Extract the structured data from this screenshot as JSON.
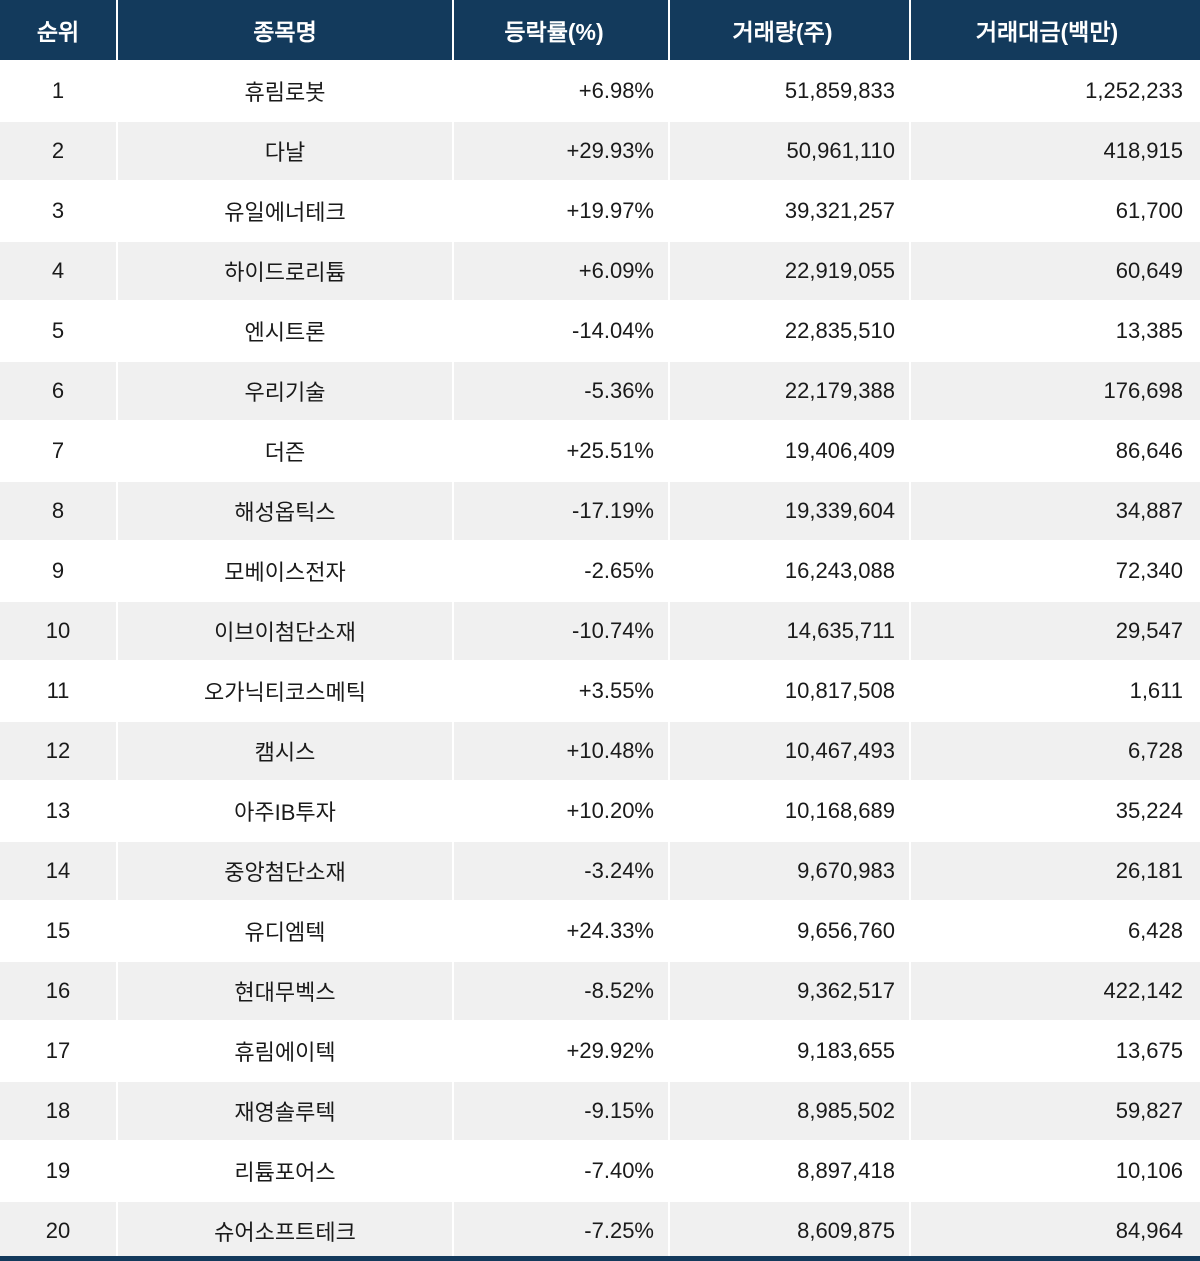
{
  "colors": {
    "header_bg": "#133a5c",
    "header_text": "#ffffff",
    "row_alt_bg": "#f0f0f0",
    "row_bg": "#ffffff",
    "cell_text": "#1a1a1a"
  },
  "table": {
    "columns": [
      {
        "label": "순위"
      },
      {
        "label": "종목명"
      },
      {
        "label": "등락률(%)"
      },
      {
        "label": "거래량(주)"
      },
      {
        "label": "거래대금(백만)"
      }
    ],
    "rows": [
      {
        "rank": "1",
        "name": "휴림로봇",
        "change": "+6.98%",
        "volume": "51,859,833",
        "value": "1,252,233"
      },
      {
        "rank": "2",
        "name": "다날",
        "change": "+29.93%",
        "volume": "50,961,110",
        "value": "418,915"
      },
      {
        "rank": "3",
        "name": "유일에너테크",
        "change": "+19.97%",
        "volume": "39,321,257",
        "value": "61,700"
      },
      {
        "rank": "4",
        "name": "하이드로리튬",
        "change": "+6.09%",
        "volume": "22,919,055",
        "value": "60,649"
      },
      {
        "rank": "5",
        "name": "엔시트론",
        "change": "-14.04%",
        "volume": "22,835,510",
        "value": "13,385"
      },
      {
        "rank": "6",
        "name": "우리기술",
        "change": "-5.36%",
        "volume": "22,179,388",
        "value": "176,698"
      },
      {
        "rank": "7",
        "name": "더즌",
        "change": "+25.51%",
        "volume": "19,406,409",
        "value": "86,646"
      },
      {
        "rank": "8",
        "name": "해성옵틱스",
        "change": "-17.19%",
        "volume": "19,339,604",
        "value": "34,887"
      },
      {
        "rank": "9",
        "name": "모베이스전자",
        "change": "-2.65%",
        "volume": "16,243,088",
        "value": "72,340"
      },
      {
        "rank": "10",
        "name": "이브이첨단소재",
        "change": "-10.74%",
        "volume": "14,635,711",
        "value": "29,547"
      },
      {
        "rank": "11",
        "name": "오가닉티코스메틱",
        "change": "+3.55%",
        "volume": "10,817,508",
        "value": "1,611"
      },
      {
        "rank": "12",
        "name": "캠시스",
        "change": "+10.48%",
        "volume": "10,467,493",
        "value": "6,728"
      },
      {
        "rank": "13",
        "name": "아주IB투자",
        "change": "+10.20%",
        "volume": "10,168,689",
        "value": "35,224"
      },
      {
        "rank": "14",
        "name": "중앙첨단소재",
        "change": "-3.24%",
        "volume": "9,670,983",
        "value": "26,181"
      },
      {
        "rank": "15",
        "name": "유디엠텍",
        "change": "+24.33%",
        "volume": "9,656,760",
        "value": "6,428"
      },
      {
        "rank": "16",
        "name": "현대무벡스",
        "change": "-8.52%",
        "volume": "9,362,517",
        "value": "422,142"
      },
      {
        "rank": "17",
        "name": "휴림에이텍",
        "change": "+29.92%",
        "volume": "9,183,655",
        "value": "13,675"
      },
      {
        "rank": "18",
        "name": "재영솔루텍",
        "change": "-9.15%",
        "volume": "8,985,502",
        "value": "59,827"
      },
      {
        "rank": "19",
        "name": "리튬포어스",
        "change": "-7.40%",
        "volume": "8,897,418",
        "value": "10,106"
      },
      {
        "rank": "20",
        "name": "슈어소프트테크",
        "change": "-7.25%",
        "volume": "8,609,875",
        "value": "84,964"
      }
    ]
  },
  "chart_data": {
    "type": "table",
    "columns": [
      "순위",
      "종목명",
      "등락률(%)",
      "거래량(주)",
      "거래대금(백만)"
    ],
    "rows": [
      [
        1,
        "휴림로봇",
        6.98,
        51859833,
        1252233
      ],
      [
        2,
        "다날",
        29.93,
        50961110,
        418915
      ],
      [
        3,
        "유일에너테크",
        19.97,
        39321257,
        61700
      ],
      [
        4,
        "하이드로리튬",
        6.09,
        22919055,
        60649
      ],
      [
        5,
        "엔시트론",
        -14.04,
        22835510,
        13385
      ],
      [
        6,
        "우리기술",
        -5.36,
        22179388,
        176698
      ],
      [
        7,
        "더즌",
        25.51,
        19406409,
        86646
      ],
      [
        8,
        "해성옵틱스",
        -17.19,
        19339604,
        34887
      ],
      [
        9,
        "모베이스전자",
        -2.65,
        16243088,
        72340
      ],
      [
        10,
        "이브이첨단소재",
        -10.74,
        14635711,
        29547
      ],
      [
        11,
        "오가닉티코스메틱",
        3.55,
        10817508,
        1611
      ],
      [
        12,
        "캠시스",
        10.48,
        10467493,
        6728
      ],
      [
        13,
        "아주IB투자",
        10.2,
        10168689,
        35224
      ],
      [
        14,
        "중앙첨단소재",
        -3.24,
        9670983,
        26181
      ],
      [
        15,
        "유디엠텍",
        24.33,
        9656760,
        6428
      ],
      [
        16,
        "현대무벡스",
        -8.52,
        9362517,
        422142
      ],
      [
        17,
        "휴림에이텍",
        29.92,
        9183655,
        13675
      ],
      [
        18,
        "재영솔루텍",
        -9.15,
        8985502,
        59827
      ],
      [
        19,
        "리튬포어스",
        -7.4,
        8897418,
        10106
      ],
      [
        20,
        "슈어소프트테크",
        -7.25,
        8609875,
        84964
      ]
    ],
    "layout_hints": {
      "striped_rows": true,
      "header_bg": "#133a5c",
      "stripe_bg": "#f0f0f0",
      "numeric_columns_right_aligned": true
    }
  }
}
